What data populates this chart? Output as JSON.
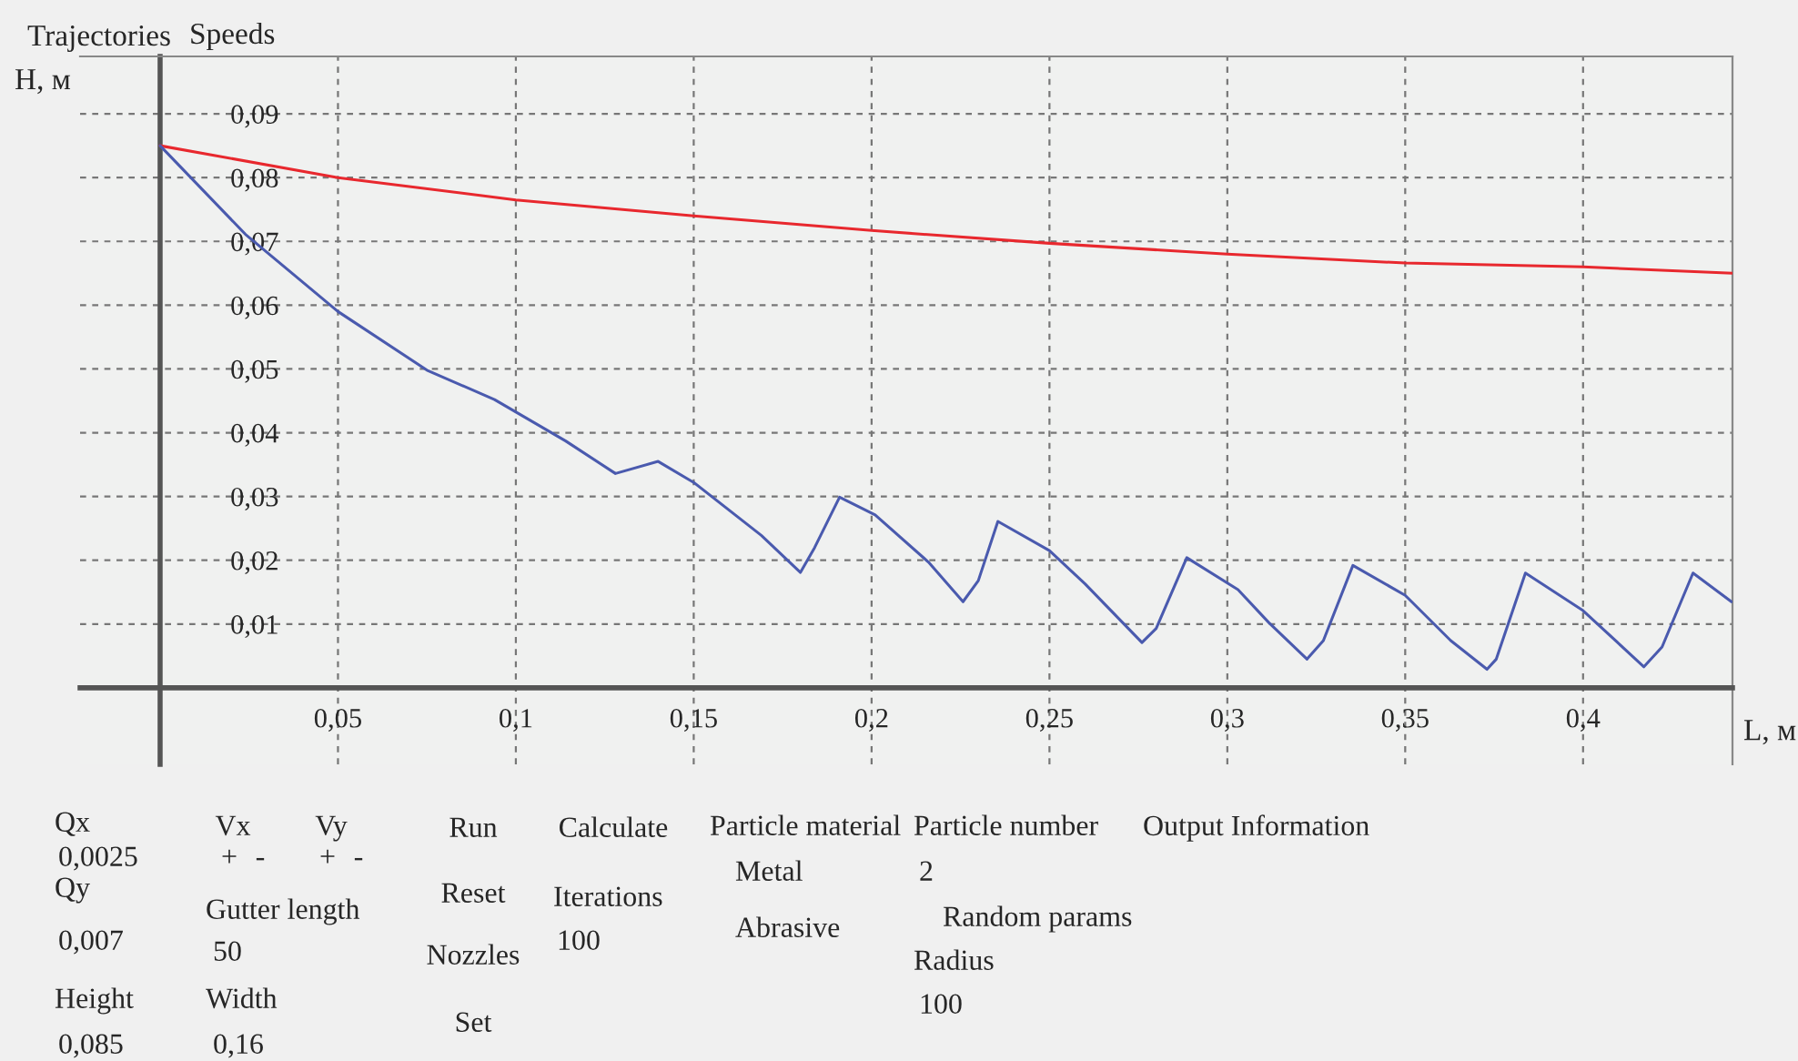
{
  "chart_data": {
    "type": "line",
    "xlabel": "L, м",
    "ylabel": "H, м",
    "xlim": [
      -0.0225,
      0.442
    ],
    "ylim": [
      -0.012,
      0.099
    ],
    "xticks": [
      {
        "value": 0.05,
        "label": "0,05"
      },
      {
        "value": 0.1,
        "label": "0,1"
      },
      {
        "value": 0.15,
        "label": "0,15"
      },
      {
        "value": 0.2,
        "label": "0,2"
      },
      {
        "value": 0.25,
        "label": "0,25"
      },
      {
        "value": 0.3,
        "label": "0,3"
      },
      {
        "value": 0.35,
        "label": "0,35"
      },
      {
        "value": 0.4,
        "label": "0,4"
      }
    ],
    "yticks": [
      {
        "value": 0.01,
        "label": "0,01"
      },
      {
        "value": 0.02,
        "label": "0,02"
      },
      {
        "value": 0.03,
        "label": "0,03"
      },
      {
        "value": 0.04,
        "label": "0,04"
      },
      {
        "value": 0.05,
        "label": "0,05"
      },
      {
        "value": 0.06,
        "label": "0,06"
      },
      {
        "value": 0.07,
        "label": "0,07"
      },
      {
        "value": 0.08,
        "label": "0,08"
      },
      {
        "value": 0.09,
        "label": "0,09"
      }
    ],
    "grid": true,
    "legend": false,
    "marker": "none",
    "line_style": "solid",
    "series": [
      {
        "color": "#e8282e",
        "x": [
          0,
          0.05,
          0.1,
          0.15,
          0.2,
          0.25,
          0.3,
          0.35,
          0.4,
          0.442
        ],
        "values": [
          0.085,
          0.08,
          0.0765,
          0.074,
          0.0717,
          0.0697,
          0.068,
          0.0666,
          0.066,
          0.065
        ]
      },
      {
        "color": "#4a5aae",
        "x": [
          0,
          0.024,
          0.05,
          0.075,
          0.094,
          0.114,
          0.128,
          0.14,
          0.15,
          0.169,
          0.18,
          0.184,
          0.191,
          0.201,
          0.216,
          0.2257,
          0.23,
          0.2355,
          0.25,
          0.26,
          0.276,
          0.28,
          0.2886,
          0.303,
          0.3117,
          0.3224,
          0.327,
          0.3353,
          0.35,
          0.3628,
          0.373,
          0.3756,
          0.3838,
          0.4,
          0.4171,
          0.4222,
          0.4309,
          0.4417
        ],
        "values": [
          0.085,
          0.0711,
          0.059,
          0.0498,
          0.0452,
          0.0387,
          0.0336,
          0.0355,
          0.0322,
          0.0239,
          0.0181,
          0.022,
          0.0299,
          0.0271,
          0.0197,
          0.0135,
          0.0168,
          0.0261,
          0.0215,
          0.0163,
          0.0071,
          0.0093,
          0.0204,
          0.0154,
          0.0102,
          0.0045,
          0.0074,
          0.0192,
          0.0145,
          0.0074,
          0.0029,
          0.0045,
          0.018,
          0.0121,
          0.0033,
          0.0064,
          0.018,
          0.0135
        ]
      }
    ],
    "annotations": [
      "Trajectories",
      "Speeds",
      "Qx",
      "0,0025",
      "Vx",
      "+",
      "-",
      "Vy",
      "+",
      "-",
      "Run",
      "Calculate",
      "Particle material",
      "Metal",
      "Abrasive",
      "Particle number",
      "2",
      "Random params",
      "Radius",
      "100",
      "Output Information",
      "Qy",
      "0,007",
      "Gutter length",
      "50",
      "Iterations",
      "100",
      "Reset",
      "Nozzles",
      "Set",
      "Height",
      "0,085",
      "Width",
      "0,16"
    ]
  }
}
